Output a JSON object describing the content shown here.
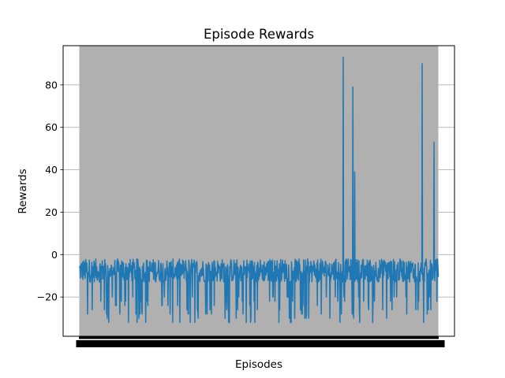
{
  "chart_data": {
    "type": "line",
    "title": "Episode Rewards",
    "xlabel": "Episodes",
    "ylabel": "Rewards",
    "ylim": [
      -38.5,
      98.5
    ],
    "xlim": [
      -45,
      1045
    ],
    "yticks": [
      -20,
      0,
      20,
      40,
      60,
      80
    ],
    "ytick_labels": [
      "−20",
      "0",
      "20",
      "40",
      "60",
      "80"
    ],
    "grid": "horizontal",
    "plot_background": "#b0b0b0",
    "series_color": "#1f77b4",
    "series": [
      {
        "x_range": [
          0,
          1000
        ],
        "episodes": 1001,
        "baseline_range": [
          -13,
          -2
        ],
        "dip_values": [
          -20,
          -22,
          -24,
          -26,
          -28,
          -30,
          -32
        ],
        "spikes": [
          {
            "episode": 735,
            "value": 93
          },
          {
            "episode": 762,
            "value": 79
          },
          {
            "episode": 767,
            "value": 39
          },
          {
            "episode": 955,
            "value": 90
          },
          {
            "episode": 988,
            "value": 53
          }
        ]
      }
    ]
  }
}
